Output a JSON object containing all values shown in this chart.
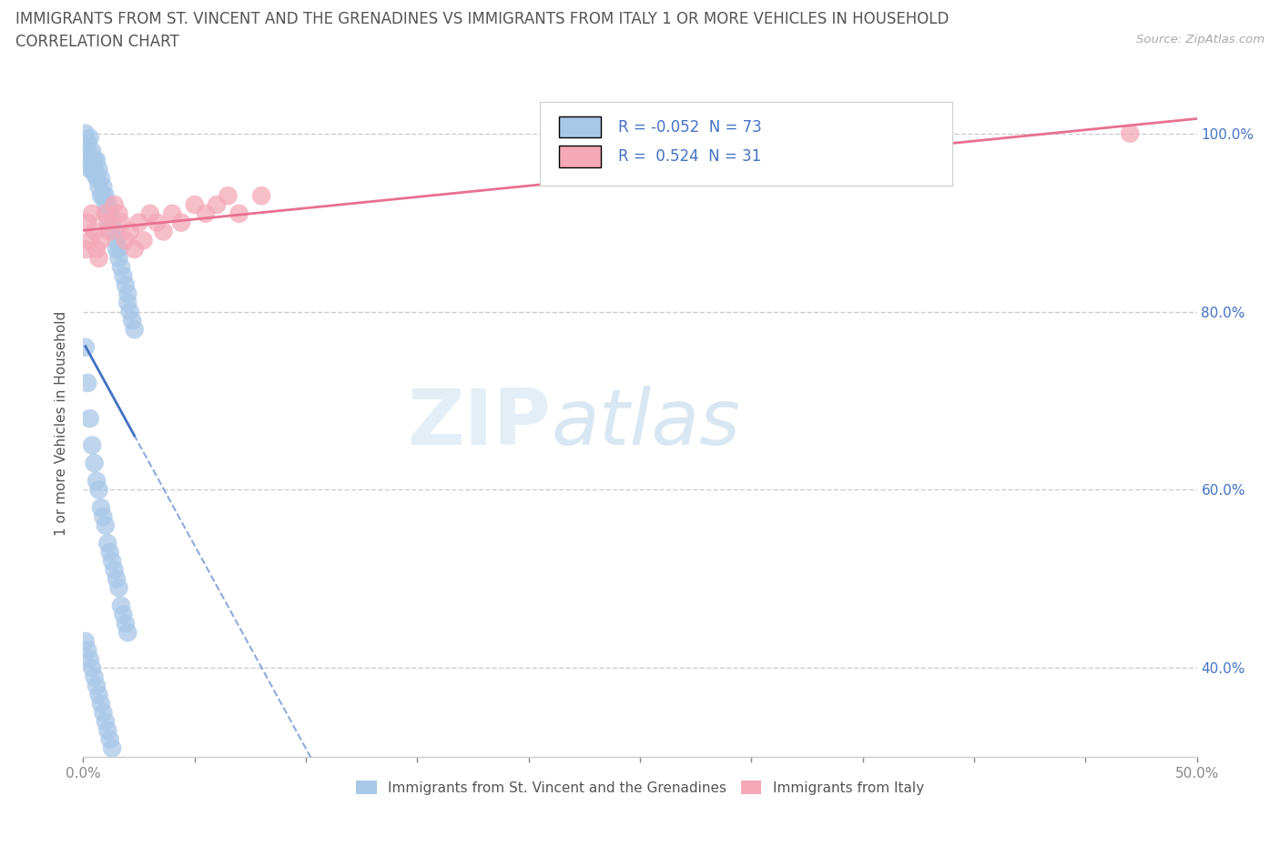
{
  "title_line1": "IMMIGRANTS FROM ST. VINCENT AND THE GRENADINES VS IMMIGRANTS FROM ITALY 1 OR MORE VEHICLES IN HOUSEHOLD",
  "title_line2": "CORRELATION CHART",
  "source_text": "Source: ZipAtlas.com",
  "ylabel": "1 or more Vehicles in Household",
  "legend_label1": "Immigrants from St. Vincent and the Grenadines",
  "legend_label2": "Immigrants from Italy",
  "R1": -0.052,
  "N1": 73,
  "R2": 0.524,
  "N2": 31,
  "color1": "#a8c8e8",
  "color2": "#f4a8b8",
  "trendline1_color": "#4472c4",
  "trendline2_color": "#e87090",
  "xlim": [
    0.0,
    0.5
  ],
  "ylim": [
    0.3,
    1.05
  ],
  "yticks": [
    0.4,
    0.6,
    0.8,
    1.0
  ],
  "watermark_zip": "ZIP",
  "watermark_atlas": "atlas",
  "blue_x": [
    0.001,
    0.002,
    0.002,
    0.003,
    0.003,
    0.003,
    0.004,
    0.004,
    0.004,
    0.005,
    0.005,
    0.005,
    0.006,
    0.006,
    0.007,
    0.007,
    0.008,
    0.008,
    0.009,
    0.009,
    0.01,
    0.01,
    0.011,
    0.011,
    0.012,
    0.012,
    0.013,
    0.014,
    0.015,
    0.015,
    0.016,
    0.016,
    0.017,
    0.018,
    0.019,
    0.02,
    0.02,
    0.021,
    0.022,
    0.023,
    0.001,
    0.002,
    0.003,
    0.004,
    0.005,
    0.006,
    0.007,
    0.008,
    0.009,
    0.01,
    0.011,
    0.012,
    0.013,
    0.014,
    0.015,
    0.016,
    0.017,
    0.018,
    0.019,
    0.02,
    0.001,
    0.002,
    0.003,
    0.004,
    0.005,
    0.006,
    0.007,
    0.008,
    0.009,
    0.01,
    0.011,
    0.012,
    0.013
  ],
  "blue_y": [
    1.0,
    0.99,
    0.98,
    0.97,
    0.96,
    0.995,
    0.98,
    0.97,
    0.96,
    0.97,
    0.96,
    0.955,
    0.97,
    0.95,
    0.96,
    0.94,
    0.95,
    0.93,
    0.94,
    0.93,
    0.93,
    0.92,
    0.92,
    0.91,
    0.91,
    0.9,
    0.9,
    0.89,
    0.88,
    0.87,
    0.87,
    0.86,
    0.85,
    0.84,
    0.83,
    0.82,
    0.81,
    0.8,
    0.79,
    0.78,
    0.76,
    0.72,
    0.68,
    0.65,
    0.63,
    0.61,
    0.6,
    0.58,
    0.57,
    0.56,
    0.54,
    0.53,
    0.52,
    0.51,
    0.5,
    0.49,
    0.47,
    0.46,
    0.45,
    0.44,
    0.43,
    0.42,
    0.41,
    0.4,
    0.39,
    0.38,
    0.37,
    0.36,
    0.35,
    0.34,
    0.33,
    0.32,
    0.31
  ],
  "pink_x": [
    0.001,
    0.002,
    0.003,
    0.004,
    0.005,
    0.006,
    0.007,
    0.008,
    0.01,
    0.011,
    0.012,
    0.014,
    0.016,
    0.017,
    0.019,
    0.021,
    0.023,
    0.025,
    0.027,
    0.03,
    0.033,
    0.036,
    0.04,
    0.044,
    0.05,
    0.055,
    0.06,
    0.065,
    0.07,
    0.08,
    0.47
  ],
  "pink_y": [
    0.87,
    0.9,
    0.88,
    0.91,
    0.89,
    0.87,
    0.86,
    0.88,
    0.91,
    0.9,
    0.89,
    0.92,
    0.91,
    0.9,
    0.88,
    0.89,
    0.87,
    0.9,
    0.88,
    0.91,
    0.9,
    0.89,
    0.91,
    0.9,
    0.92,
    0.91,
    0.92,
    0.93,
    0.91,
    0.93,
    1.0
  ]
}
